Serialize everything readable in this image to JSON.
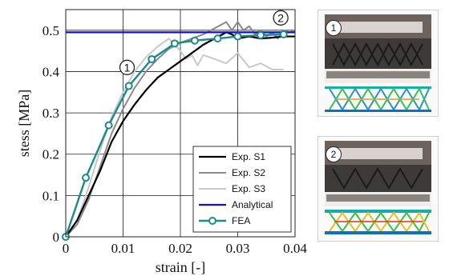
{
  "chart_data": {
    "type": "line",
    "xlabel": "strain [-]",
    "ylabel": "stess [MPa]",
    "xlim": [
      0,
      0.04
    ],
    "ylim": [
      0,
      0.55
    ],
    "x_ticks": [
      0,
      0.01,
      0.02,
      0.03,
      0.04
    ],
    "x_tick_labels": [
      "0",
      "0.01",
      "0.02",
      "0.03",
      "0.04"
    ],
    "y_ticks": [
      0,
      0.1,
      0.2,
      0.3,
      0.4,
      0.5
    ],
    "y_tick_labels": [
      "0",
      "0.1",
      "0.2",
      "0.3",
      "0.4",
      "0.5"
    ],
    "grid": true,
    "legend_position": "bottom-right",
    "series": [
      {
        "name": "Exp. S1",
        "color": "#000000",
        "x": [
          0,
          0.002,
          0.004,
          0.006,
          0.008,
          0.01,
          0.012,
          0.014,
          0.016,
          0.018,
          0.02,
          0.022,
          0.024,
          0.026,
          0.028,
          0.029,
          0.03,
          0.032,
          0.034,
          0.036,
          0.038,
          0.04
        ],
        "y": [
          0,
          0.04,
          0.1,
          0.16,
          0.23,
          0.28,
          0.32,
          0.355,
          0.385,
          0.405,
          0.425,
          0.445,
          0.465,
          0.48,
          0.495,
          0.49,
          0.48,
          0.485,
          0.48,
          0.482,
          0.485,
          0.485
        ]
      },
      {
        "name": "Exp. S2",
        "color": "#8a8a8a",
        "x": [
          0,
          0.002,
          0.004,
          0.006,
          0.008,
          0.01,
          0.012,
          0.014,
          0.016,
          0.018,
          0.02,
          0.022,
          0.024,
          0.026,
          0.028,
          0.029,
          0.03,
          0.031,
          0.032,
          0.033,
          0.034,
          0.035,
          0.036,
          0.037,
          0.038,
          0.039,
          0.04
        ],
        "y": [
          0,
          0.03,
          0.09,
          0.17,
          0.25,
          0.31,
          0.36,
          0.4,
          0.43,
          0.455,
          0.47,
          0.48,
          0.49,
          0.505,
          0.52,
          0.5,
          0.52,
          0.5,
          0.51,
          0.49,
          0.5,
          0.485,
          0.495,
          0.48,
          0.5,
          0.495,
          0.5
        ]
      },
      {
        "name": "Exp. S3",
        "color": "#c8c8c8",
        "x": [
          0,
          0.002,
          0.004,
          0.006,
          0.008,
          0.01,
          0.012,
          0.014,
          0.016,
          0.018,
          0.02,
          0.021,
          0.022,
          0.023,
          0.024,
          0.026,
          0.028,
          0.03,
          0.032,
          0.034,
          0.036,
          0.038
        ],
        "y": [
          0,
          0.04,
          0.12,
          0.21,
          0.29,
          0.35,
          0.4,
          0.435,
          0.46,
          0.48,
          0.45,
          0.43,
          0.44,
          0.415,
          0.44,
          0.43,
          0.42,
          0.445,
          0.41,
          0.42,
          0.405,
          0.405
        ]
      },
      {
        "name": "Analytical",
        "color": "#1010d0",
        "x": [
          0,
          0.04
        ],
        "y": [
          0.495,
          0.495
        ]
      },
      {
        "name": "FEA",
        "color": "#1a8a8a",
        "x": [
          0,
          0.0035,
          0.0075,
          0.011,
          0.015,
          0.019,
          0.0225,
          0.0265,
          0.03,
          0.034,
          0.038
        ],
        "y": [
          0,
          0.143,
          0.27,
          0.365,
          0.43,
          0.468,
          0.475,
          0.48,
          0.485,
          0.488,
          0.49
        ]
      }
    ],
    "annotations": [
      {
        "label": "1",
        "x": 0.0107,
        "y": 0.41
      },
      {
        "label": "2",
        "x": 0.0375,
        "y": 0.53
      }
    ]
  },
  "photos": [
    {
      "label": "1"
    },
    {
      "label": "2"
    }
  ]
}
